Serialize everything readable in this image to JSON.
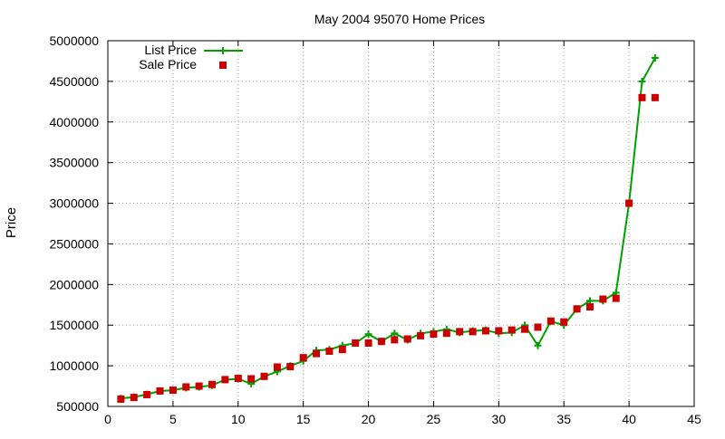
{
  "chart_data": {
    "type": "line",
    "title": "May 2004 95070 Home Prices",
    "xlabel": "",
    "ylabel": "Price",
    "xlim": [
      0,
      45
    ],
    "ylim": [
      500000,
      5000000
    ],
    "xticks": [
      "0",
      "5",
      "10",
      "15",
      "20",
      "25",
      "30",
      "35",
      "40",
      "45"
    ],
    "yticks": [
      "500000",
      "1000000",
      "1500000",
      "2000000",
      "2500000",
      "3000000",
      "3500000",
      "4000000",
      "4500000",
      "5000000"
    ],
    "grid": true,
    "legend_position": "top-left",
    "colors": {
      "list": "#00a000",
      "sale": "#cc0000"
    },
    "series": [
      {
        "name": "List Price",
        "style": "line-plus",
        "x": [
          1,
          2,
          3,
          4,
          5,
          6,
          7,
          8,
          9,
          10,
          11,
          12,
          13,
          14,
          15,
          16,
          17,
          18,
          19,
          20,
          21,
          22,
          23,
          24,
          25,
          26,
          27,
          28,
          29,
          30,
          31,
          32,
          33,
          34,
          35,
          36,
          37,
          38,
          39,
          40,
          41,
          42
        ],
        "y": [
          599000,
          615000,
          649000,
          689000,
          699000,
          729000,
          739000,
          759000,
          829000,
          839000,
          779000,
          869000,
          929000,
          999000,
          1059000,
          1189000,
          1199000,
          1249000,
          1279000,
          1389000,
          1299000,
          1399000,
          1319000,
          1399000,
          1419000,
          1449000,
          1409000,
          1429000,
          1439000,
          1399000,
          1409000,
          1499000,
          1249000,
          1549000,
          1499000,
          1699000,
          1799000,
          1799000,
          1899000,
          2999000,
          4499000,
          4789000
        ]
      },
      {
        "name": "Sale Price",
        "style": "square",
        "x": [
          1,
          2,
          3,
          4,
          5,
          6,
          7,
          8,
          9,
          10,
          11,
          12,
          13,
          14,
          15,
          16,
          17,
          18,
          19,
          20,
          21,
          22,
          23,
          24,
          25,
          26,
          27,
          28,
          29,
          30,
          31,
          32,
          33,
          34,
          35,
          36,
          37,
          38,
          39,
          40,
          41,
          42
        ],
        "y": [
          590000,
          610000,
          645000,
          690000,
          700000,
          740000,
          750000,
          770000,
          830000,
          845000,
          840000,
          870000,
          985000,
          990000,
          1100000,
          1150000,
          1180000,
          1200000,
          1280000,
          1280000,
          1300000,
          1320000,
          1330000,
          1370000,
          1390000,
          1400000,
          1420000,
          1420000,
          1430000,
          1430000,
          1440000,
          1450000,
          1475000,
          1550000,
          1540000,
          1700000,
          1725000,
          1820000,
          1830000,
          3000000,
          4300000,
          4300000
        ]
      }
    ]
  }
}
